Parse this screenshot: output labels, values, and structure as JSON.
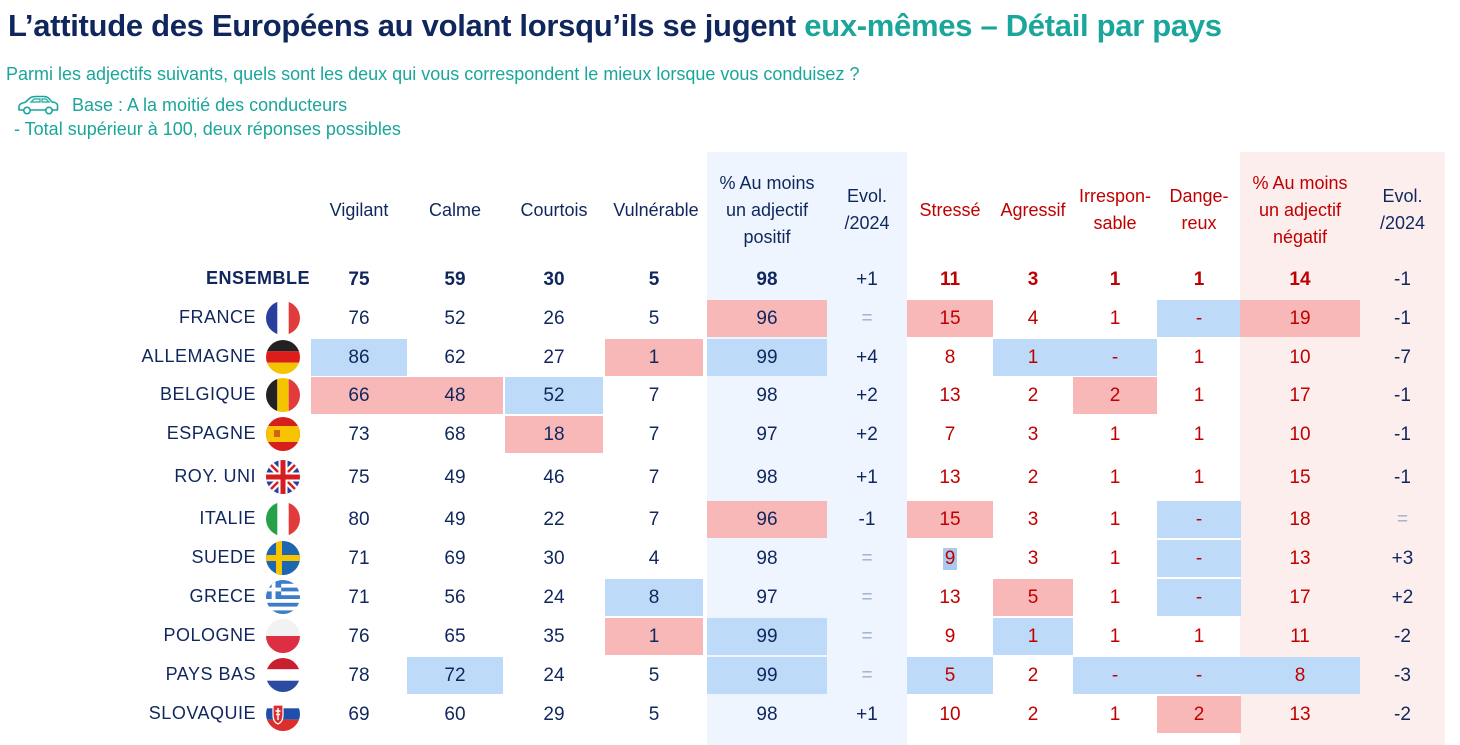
{
  "title": {
    "main": "L’attitude des Européens au volant lorsqu’ils se jugent ",
    "accent": "eux-mêmes – Détail par pays"
  },
  "question": "Parmi les adjectifs suivants, quels sont les deux qui vous correspondent le mieux lorsque vous conduisez ?",
  "base": "Base : A la moitié des conducteurs",
  "note": "- Total supérieur à 100, deux réponses possibles",
  "icons": {
    "car": "car-icon"
  },
  "colors": {
    "navy": "#10275e",
    "teal": "#1aa69a",
    "red": "#c00000",
    "highlight_red": "#f9b8b8",
    "highlight_blue": "#bedaf9"
  },
  "columns": [
    {
      "label": "Vigilant",
      "type": "pos"
    },
    {
      "label": "Calme",
      "type": "pos"
    },
    {
      "label": "Courtois",
      "type": "pos"
    },
    {
      "label": "Vulnérable",
      "type": "pos"
    },
    {
      "label": "% Au moins un adjectif positif",
      "type": "pos"
    },
    {
      "label": "Evol. /2024",
      "type": "evo"
    },
    {
      "label": "Stressé",
      "type": "neg"
    },
    {
      "label": "Agressif",
      "type": "neg"
    },
    {
      "label": "Irrespon- sable",
      "type": "neg"
    },
    {
      "label": "Dange- reux",
      "type": "neg"
    },
    {
      "label": "% Au moins un adjectif négatif",
      "type": "neg"
    },
    {
      "label": "Evol. /2024",
      "type": "evo"
    }
  ],
  "rows": [
    {
      "label": "ENSEMBLE",
      "flag": "",
      "values": [
        "75",
        "59",
        "30",
        "5",
        "98",
        "+1",
        "11",
        "3",
        "1",
        "1",
        "14",
        "-1"
      ]
    },
    {
      "label": "FRANCE",
      "flag": "france-flag-icon",
      "values": [
        "76",
        "52",
        "26",
        "5",
        "96",
        "=",
        "15",
        "4",
        "1",
        "-",
        "19",
        "-1"
      ]
    },
    {
      "label": "ALLEMAGNE",
      "flag": "germany-flag-icon",
      "values": [
        "86",
        "62",
        "27",
        "1",
        "99",
        "+4",
        "8",
        "1",
        "-",
        "1",
        "10",
        "-7"
      ]
    },
    {
      "label": "BELGIQUE",
      "flag": "belgium-flag-icon",
      "values": [
        "66",
        "48",
        "52",
        "7",
        "98",
        "+2",
        "13",
        "2",
        "2",
        "1",
        "17",
        "-1"
      ]
    },
    {
      "label": "ESPAGNE",
      "flag": "spain-flag-icon",
      "values": [
        "73",
        "68",
        "18",
        "7",
        "97",
        "+2",
        "7",
        "3",
        "1",
        "1",
        "10",
        "-1"
      ]
    },
    {
      "label": "ROY. UNI",
      "flag": "uk-flag-icon",
      "values": [
        "75",
        "49",
        "46",
        "7",
        "98",
        "+1",
        "13",
        "2",
        "1",
        "1",
        "15",
        "-1"
      ]
    },
    {
      "label": "ITALIE",
      "flag": "italy-flag-icon",
      "values": [
        "80",
        "49",
        "22",
        "7",
        "96",
        "-1",
        "15",
        "3",
        "1",
        "-",
        "18",
        "="
      ]
    },
    {
      "label": "SUEDE",
      "flag": "sweden-flag-icon",
      "values": [
        "71",
        "69",
        "30",
        "4",
        "98",
        "=",
        "9",
        "3",
        "1",
        "-",
        "13",
        "+3"
      ]
    },
    {
      "label": "GRECE",
      "flag": "greece-flag-icon",
      "values": [
        "71",
        "56",
        "24",
        "8",
        "97",
        "=",
        "13",
        "5",
        "1",
        "-",
        "17",
        "+2"
      ]
    },
    {
      "label": "POLOGNE",
      "flag": "poland-flag-icon",
      "values": [
        "76",
        "65",
        "35",
        "1",
        "99",
        "=",
        "9",
        "1",
        "1",
        "1",
        "11",
        "-2"
      ]
    },
    {
      "label": "PAYS BAS",
      "flag": "netherlands-flag-icon",
      "values": [
        "78",
        "72",
        "24",
        "5",
        "99",
        "=",
        "5",
        "2",
        "-",
        "-",
        "8",
        "-3"
      ]
    },
    {
      "label": "SLOVAQUIE",
      "flag": "slovakia-flag-icon",
      "values": [
        "69",
        "60",
        "29",
        "5",
        "98",
        "+1",
        "10",
        "2",
        "1",
        "2",
        "13",
        "-2"
      ]
    }
  ],
  "highlights_red": [
    [
      1,
      4
    ],
    [
      1,
      6
    ],
    [
      1,
      10
    ],
    [
      2,
      3
    ],
    [
      3,
      0
    ],
    [
      3,
      1
    ],
    [
      3,
      8
    ],
    [
      4,
      2
    ],
    [
      6,
      4
    ],
    [
      6,
      6
    ],
    [
      8,
      7
    ],
    [
      9,
      3
    ],
    [
      11,
      9
    ]
  ],
  "highlights_blue": [
    [
      1,
      9
    ],
    [
      2,
      0
    ],
    [
      2,
      4
    ],
    [
      2,
      7
    ],
    [
      2,
      8
    ],
    [
      3,
      2
    ],
    [
      6,
      9
    ],
    [
      7,
      9
    ],
    [
      8,
      3
    ],
    [
      8,
      9
    ],
    [
      9,
      4
    ],
    [
      9,
      7
    ],
    [
      10,
      1
    ],
    [
      10,
      4
    ],
    [
      10,
      6
    ],
    [
      10,
      8
    ],
    [
      10,
      9
    ],
    [
      10,
      10
    ]
  ]
}
